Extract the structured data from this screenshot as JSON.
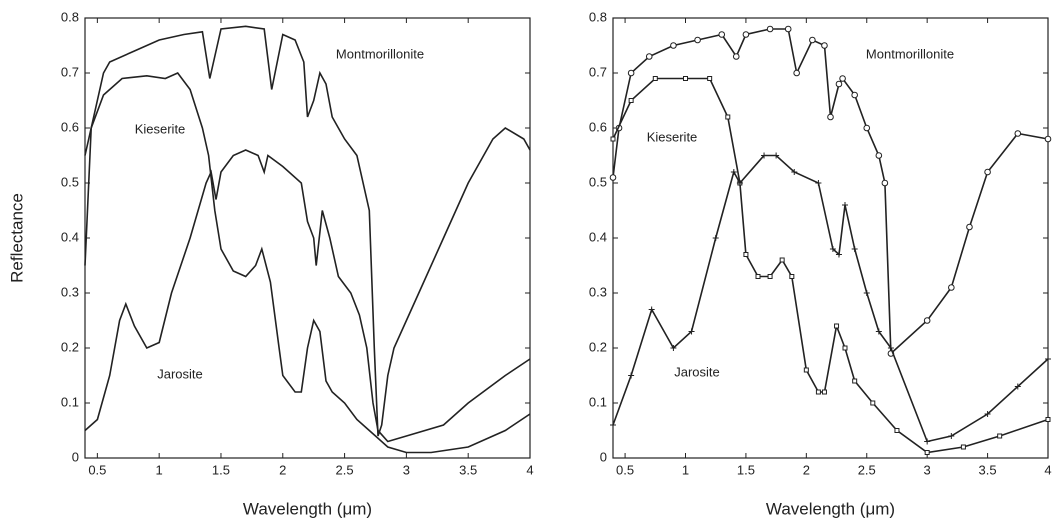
{
  "chart_data": [
    {
      "type": "line",
      "ylabel": "Reflectance",
      "xlabel": "Wavelength (μm)",
      "xlim": [
        0.4,
        4
      ],
      "ylim": [
        0,
        0.8
      ],
      "xticks": [
        0.5,
        1,
        1.5,
        2,
        2.5,
        3,
        3.5,
        4
      ],
      "yticks": [
        0,
        0.1,
        0.2,
        0.3,
        0.4,
        0.5,
        0.6,
        0.7,
        0.8
      ],
      "series": [
        {
          "name": "Montmorillonite",
          "color": "#222222",
          "marker": "none",
          "x": [
            0.4,
            0.45,
            0.55,
            0.6,
            0.8,
            1.0,
            1.2,
            1.35,
            1.41,
            1.5,
            1.7,
            1.85,
            1.91,
            2.0,
            2.1,
            2.17,
            2.2,
            2.25,
            2.3,
            2.35,
            2.4,
            2.5,
            2.6,
            2.7,
            2.74,
            2.77,
            2.8,
            2.85,
            2.9,
            3.1,
            3.3,
            3.5,
            3.7,
            3.8,
            3.95,
            4.0
          ],
          "values": [
            0.35,
            0.6,
            0.7,
            0.72,
            0.74,
            0.76,
            0.77,
            0.775,
            0.69,
            0.78,
            0.785,
            0.78,
            0.67,
            0.77,
            0.76,
            0.72,
            0.62,
            0.65,
            0.7,
            0.68,
            0.62,
            0.58,
            0.55,
            0.45,
            0.2,
            0.04,
            0.06,
            0.15,
            0.2,
            0.3,
            0.4,
            0.5,
            0.58,
            0.6,
            0.58,
            0.56
          ]
        },
        {
          "name": "Kieserite",
          "color": "#222222",
          "marker": "none",
          "x": [
            0.4,
            0.45,
            0.55,
            0.7,
            0.9,
            1.05,
            1.15,
            1.25,
            1.35,
            1.4,
            1.45,
            1.5,
            1.6,
            1.7,
            1.78,
            1.83,
            1.9,
            1.97,
            2.0,
            2.1,
            2.15,
            2.2,
            2.25,
            2.3,
            2.35,
            2.4,
            2.5,
            2.6,
            2.7,
            2.75,
            2.85,
            3.0,
            3.2,
            3.5,
            3.8,
            4.0
          ],
          "values": [
            0.55,
            0.6,
            0.66,
            0.69,
            0.695,
            0.69,
            0.7,
            0.67,
            0.6,
            0.55,
            0.45,
            0.38,
            0.34,
            0.33,
            0.35,
            0.38,
            0.32,
            0.2,
            0.15,
            0.12,
            0.12,
            0.2,
            0.25,
            0.23,
            0.14,
            0.12,
            0.1,
            0.07,
            0.05,
            0.04,
            0.02,
            0.01,
            0.01,
            0.02,
            0.05,
            0.08
          ]
        },
        {
          "name": "Jarosite",
          "color": "#222222",
          "marker": "none",
          "x": [
            0.4,
            0.5,
            0.6,
            0.68,
            0.73,
            0.8,
            0.9,
            1.0,
            1.1,
            1.25,
            1.38,
            1.42,
            1.46,
            1.5,
            1.6,
            1.7,
            1.8,
            1.85,
            1.88,
            2.0,
            2.15,
            2.2,
            2.25,
            2.27,
            2.32,
            2.38,
            2.45,
            2.55,
            2.62,
            2.68,
            2.73,
            2.77,
            2.85,
            3.0,
            3.3,
            3.5,
            3.8,
            4.0
          ],
          "values": [
            0.05,
            0.07,
            0.15,
            0.25,
            0.28,
            0.24,
            0.2,
            0.21,
            0.3,
            0.4,
            0.5,
            0.52,
            0.47,
            0.52,
            0.55,
            0.56,
            0.55,
            0.52,
            0.55,
            0.53,
            0.5,
            0.43,
            0.4,
            0.35,
            0.45,
            0.4,
            0.33,
            0.3,
            0.26,
            0.2,
            0.1,
            0.05,
            0.03,
            0.04,
            0.06,
            0.1,
            0.15,
            0.18
          ]
        }
      ]
    },
    {
      "type": "line",
      "xlabel": "Wavelength (μm)",
      "xlim": [
        0.4,
        4
      ],
      "ylim": [
        0,
        0.8
      ],
      "xticks": [
        0.5,
        1,
        1.5,
        2,
        2.5,
        3,
        3.5,
        4
      ],
      "yticks": [
        0,
        0.1,
        0.2,
        0.3,
        0.4,
        0.5,
        0.6,
        0.7,
        0.8
      ],
      "series": [
        {
          "name": "Montmorillonite",
          "color": "#222222",
          "marker": "circle",
          "x": [
            0.4,
            0.45,
            0.55,
            0.7,
            0.9,
            1.1,
            1.3,
            1.42,
            1.5,
            1.7,
            1.85,
            1.92,
            2.05,
            2.15,
            2.2,
            2.27,
            2.3,
            2.4,
            2.5,
            2.6,
            2.65,
            2.7,
            3.0,
            3.2,
            3.35,
            3.5,
            3.75,
            4.0
          ],
          "values": [
            0.51,
            0.6,
            0.7,
            0.73,
            0.75,
            0.76,
            0.77,
            0.73,
            0.77,
            0.78,
            0.78,
            0.7,
            0.76,
            0.75,
            0.62,
            0.68,
            0.69,
            0.66,
            0.6,
            0.55,
            0.5,
            0.19,
            0.25,
            0.31,
            0.42,
            0.52,
            0.59,
            0.58
          ]
        },
        {
          "name": "Kieserite",
          "color": "#222222",
          "marker": "square",
          "x": [
            0.4,
            0.55,
            0.75,
            1.0,
            1.2,
            1.35,
            1.45,
            1.5,
            1.6,
            1.7,
            1.8,
            1.88,
            2.0,
            2.1,
            2.15,
            2.25,
            2.32,
            2.4,
            2.55,
            2.75,
            3.0,
            3.3,
            3.6,
            4.0
          ],
          "values": [
            0.58,
            0.65,
            0.69,
            0.69,
            0.69,
            0.62,
            0.5,
            0.37,
            0.33,
            0.33,
            0.36,
            0.33,
            0.16,
            0.12,
            0.12,
            0.24,
            0.2,
            0.14,
            0.1,
            0.05,
            0.01,
            0.02,
            0.04,
            0.07
          ]
        },
        {
          "name": "Jarosite",
          "color": "#222222",
          "marker": "plus",
          "x": [
            0.4,
            0.55,
            0.72,
            0.9,
            1.05,
            1.25,
            1.4,
            1.45,
            1.65,
            1.75,
            1.9,
            2.1,
            2.22,
            2.27,
            2.32,
            2.4,
            2.5,
            2.6,
            2.7,
            3.0,
            3.2,
            3.5,
            3.75,
            4.0
          ],
          "values": [
            0.06,
            0.15,
            0.27,
            0.2,
            0.23,
            0.4,
            0.52,
            0.5,
            0.55,
            0.55,
            0.52,
            0.5,
            0.38,
            0.37,
            0.46,
            0.38,
            0.3,
            0.23,
            0.2,
            0.03,
            0.04,
            0.08,
            0.13,
            0.18
          ]
        }
      ]
    }
  ]
}
